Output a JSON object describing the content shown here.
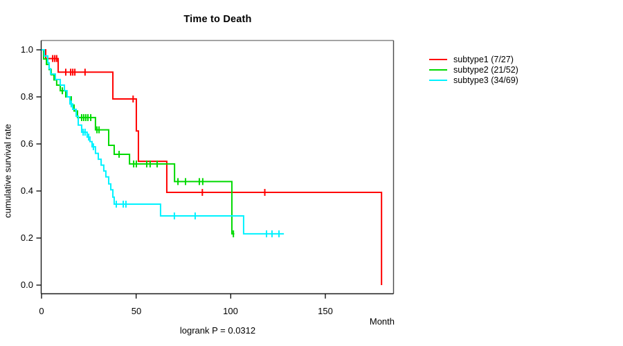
{
  "chart_data": {
    "type": "line",
    "variant": "kaplan-meier-step-curves",
    "title": "Time to Death",
    "xlabel": "Month",
    "ylabel": "cumulative survival rate",
    "footnote": "logrank P = 0.0312",
    "xlim": [
      0,
      186
    ],
    "ylim": [
      0,
      1.0
    ],
    "xticks": [
      0,
      50,
      100,
      150
    ],
    "yticks": [
      1.0,
      0.8,
      0.6,
      0.4,
      0.2,
      0.0
    ],
    "xtick_labels": [
      "0",
      "50",
      "100",
      "150"
    ],
    "ytick_labels": [
      "1.0",
      "0.8",
      "0.6",
      "0.4",
      "0.2",
      "0.0"
    ],
    "grid": false,
    "legend_position": "top-right-outside",
    "series": [
      {
        "name": "subtype1",
        "label": "subtype1 (7/27)",
        "events": 7,
        "n": 27,
        "color": "#ff0000",
        "steps": [
          [
            0,
            1.0
          ],
          [
            2.2,
            0.963
          ],
          [
            8.8,
            0.905
          ],
          [
            37.7,
            0.791
          ],
          [
            50.1,
            0.655
          ],
          [
            51.2,
            0.526
          ],
          [
            66.2,
            0.394
          ],
          [
            179.7,
            0.0
          ]
        ],
        "censors": [
          [
            5.9,
            0.963
          ],
          [
            7.0,
            0.963
          ],
          [
            8.0,
            0.963
          ],
          [
            12.8,
            0.905
          ],
          [
            15.4,
            0.905
          ],
          [
            16.5,
            0.905
          ],
          [
            17.6,
            0.905
          ],
          [
            23.0,
            0.905
          ],
          [
            48.4,
            0.791
          ],
          [
            85.0,
            0.394
          ],
          [
            118.0,
            0.394
          ]
        ],
        "end": 179.7
      },
      {
        "name": "subtype2",
        "label": "subtype2 (21/52)",
        "events": 21,
        "n": 52,
        "color": "#00d900",
        "steps": [
          [
            0,
            1.0
          ],
          [
            1.1,
            0.961
          ],
          [
            2.6,
            0.938
          ],
          [
            4.0,
            0.916
          ],
          [
            5.1,
            0.894
          ],
          [
            6.6,
            0.872
          ],
          [
            8.0,
            0.85
          ],
          [
            9.9,
            0.826
          ],
          [
            12.8,
            0.8
          ],
          [
            15.7,
            0.765
          ],
          [
            17.2,
            0.74
          ],
          [
            19.0,
            0.712
          ],
          [
            28.5,
            0.66
          ],
          [
            35.5,
            0.594
          ],
          [
            38.4,
            0.556
          ],
          [
            46.5,
            0.515
          ],
          [
            70.3,
            0.44
          ],
          [
            100.6,
            0.218
          ]
        ],
        "censors": [
          [
            11.0,
            0.826
          ],
          [
            21.2,
            0.712
          ],
          [
            22.3,
            0.712
          ],
          [
            23.4,
            0.712
          ],
          [
            24.5,
            0.712
          ],
          [
            26.0,
            0.712
          ],
          [
            29.3,
            0.66
          ],
          [
            30.4,
            0.66
          ],
          [
            41.0,
            0.556
          ],
          [
            48.7,
            0.515
          ],
          [
            50.1,
            0.515
          ],
          [
            55.6,
            0.515
          ],
          [
            57.4,
            0.515
          ],
          [
            61.1,
            0.515
          ],
          [
            72.1,
            0.44
          ],
          [
            76.1,
            0.44
          ],
          [
            83.4,
            0.44
          ],
          [
            85.2,
            0.44
          ],
          [
            101.4,
            0.218
          ]
        ],
        "end": 101.9
      },
      {
        "name": "subtype3",
        "label": "subtype3 (34/69)",
        "events": 34,
        "n": 69,
        "color": "#00f2ff",
        "steps": [
          [
            0,
            1.0
          ],
          [
            1.5,
            0.974
          ],
          [
            3.3,
            0.945
          ],
          [
            4.0,
            0.92
          ],
          [
            4.8,
            0.897
          ],
          [
            7.3,
            0.874
          ],
          [
            9.9,
            0.85
          ],
          [
            12.1,
            0.826
          ],
          [
            13.5,
            0.8
          ],
          [
            15.0,
            0.77
          ],
          [
            16.5,
            0.747
          ],
          [
            18.3,
            0.718
          ],
          [
            19.4,
            0.68
          ],
          [
            21.2,
            0.65
          ],
          [
            24.1,
            0.629
          ],
          [
            25.6,
            0.61
          ],
          [
            26.7,
            0.588
          ],
          [
            28.5,
            0.56
          ],
          [
            30.0,
            0.535
          ],
          [
            31.5,
            0.51
          ],
          [
            32.9,
            0.485
          ],
          [
            34.0,
            0.46
          ],
          [
            35.5,
            0.43
          ],
          [
            36.6,
            0.405
          ],
          [
            37.7,
            0.374
          ],
          [
            38.4,
            0.344
          ],
          [
            62.9,
            0.294
          ],
          [
            106.8,
            0.218
          ]
        ],
        "censors": [
          [
            15.7,
            0.77
          ],
          [
            22.0,
            0.65
          ],
          [
            23.0,
            0.65
          ],
          [
            24.9,
            0.629
          ],
          [
            27.4,
            0.588
          ],
          [
            39.5,
            0.344
          ],
          [
            43.2,
            0.344
          ],
          [
            44.6,
            0.344
          ],
          [
            70.2,
            0.294
          ],
          [
            81.2,
            0.294
          ],
          [
            118.9,
            0.218
          ],
          [
            121.8,
            0.218
          ],
          [
            125.5,
            0.218
          ]
        ],
        "end": 128.1
      }
    ]
  }
}
